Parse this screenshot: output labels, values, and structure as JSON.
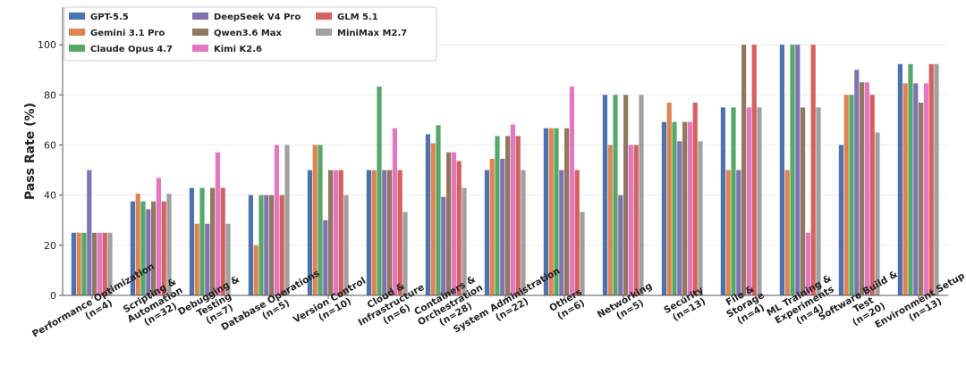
{
  "chart_data": {
    "type": "bar",
    "title": "",
    "xlabel": "",
    "ylabel": "Pass Rate (%)",
    "ylim": [
      0,
      115
    ],
    "yticks": [
      0,
      20,
      40,
      60,
      80,
      100
    ],
    "grid": "y",
    "legend_position": "top-left",
    "categories": [
      "Performance Optimization\n(n=4)",
      "Scripting &\nAutomation\n(n=32)",
      "Debugging &\nTesting\n(n=7)",
      "Database Operations\n(n=5)",
      "Version Control\n(n=10)",
      "Cloud &\nInfrastructure\n(n=6)",
      "Containers &\nOrchestration\n(n=28)",
      "System Administration\n(n=22)",
      "Others\n(n=6)",
      "Networking\n(n=5)",
      "Security\n(n=13)",
      "File &\nStorage\n(n=4)",
      "ML Training &\nExperiments\n(n=4)",
      "Software Build &\nTest\n(n=20)",
      "Environment Setup\n(n=13)"
    ],
    "series": [
      {
        "name": "GPT-5.5",
        "color": "#4C72B0",
        "values": [
          25,
          37.5,
          42.9,
          40,
          50,
          50,
          64.3,
          50,
          66.7,
          80,
          69.2,
          75,
          100,
          60,
          92.3
        ]
      },
      {
        "name": "Gemini 3.1 Pro",
        "color": "#DD8452",
        "values": [
          25,
          40.6,
          28.6,
          20,
          60,
          50,
          60.7,
          54.5,
          66.7,
          60,
          76.9,
          50,
          50,
          80,
          84.6
        ]
      },
      {
        "name": "Claude Opus 4.7",
        "color": "#55A868",
        "values": [
          25,
          37.5,
          42.9,
          40,
          60,
          83.3,
          67.9,
          63.6,
          66.7,
          80,
          69.2,
          75,
          100,
          80,
          92.3
        ]
      },
      {
        "name": "DeepSeek V4 Pro",
        "color": "#8172B3",
        "values": [
          50,
          34.4,
          28.6,
          40,
          30,
          50,
          39.3,
          54.5,
          50,
          40,
          61.5,
          50,
          100,
          90,
          84.6
        ]
      },
      {
        "name": "Qwen3.6 Max",
        "color": "#937860",
        "values": [
          25,
          37.5,
          42.9,
          40,
          50,
          50,
          57.1,
          63.6,
          66.7,
          80,
          69.2,
          100,
          75,
          85,
          76.9
        ]
      },
      {
        "name": "Kimi K2.6",
        "color": "#E377C2",
        "values": [
          25,
          46.9,
          57.1,
          60,
          50,
          66.7,
          57.1,
          68.2,
          83.3,
          60,
          69.2,
          75,
          25,
          85,
          84.6
        ]
      },
      {
        "name": "GLM 5.1",
        "color": "#D65F5F",
        "values": [
          25,
          37.5,
          42.9,
          40,
          50,
          50,
          53.6,
          63.6,
          50,
          60,
          76.9,
          100,
          100,
          80,
          92.3
        ]
      },
      {
        "name": "MiniMax M2.7",
        "color": "#A0A0A0",
        "values": [
          25,
          40.6,
          28.6,
          60,
          40,
          33.3,
          42.9,
          50,
          33.3,
          80,
          61.5,
          75,
          75,
          65,
          92.3
        ]
      }
    ]
  }
}
